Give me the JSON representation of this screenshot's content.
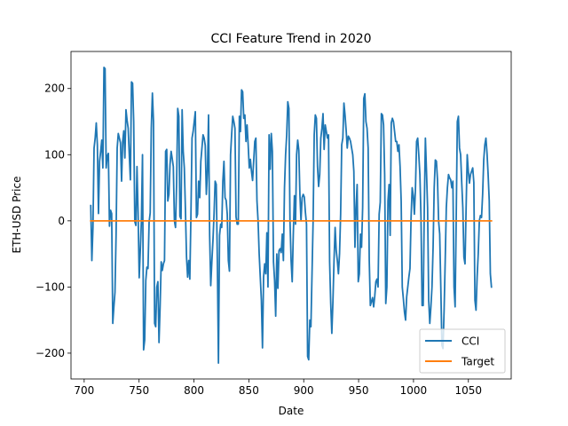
{
  "chart_data": {
    "type": "line",
    "title": "CCI Feature Trend in 2020",
    "xlabel": "Date",
    "ylabel": "ETH-USD Price",
    "xlim": [
      688,
      1089
    ],
    "ylim": [
      -239,
      256
    ],
    "xticks": [
      700,
      750,
      800,
      850,
      900,
      950,
      1000,
      1050
    ],
    "yticks": [
      -200,
      -100,
      0,
      100,
      200
    ],
    "grid": false,
    "legend": "lower right",
    "series": [
      {
        "name": "CCI",
        "color": "#1f77b4",
        "x_start": 706,
        "x_end": 1071,
        "values": [
          23,
          -60,
          -10,
          110,
          125,
          148,
          115,
          11,
          90,
          105,
          122,
          80,
          232,
          230,
          80,
          98,
          102,
          -8,
          16,
          11,
          -155,
          -130,
          -108,
          -22,
          110,
          132,
          125,
          118,
          60,
          120,
          136,
          95,
          168,
          152,
          140,
          100,
          62,
          210,
          208,
          150,
          -1,
          -7,
          82,
          12,
          -86,
          -45,
          0,
          100,
          -195,
          -180,
          -90,
          -70,
          -72,
          -2,
          12,
          140,
          193,
          150,
          -155,
          -160,
          -100,
          -92,
          -184,
          -130,
          -62,
          -75,
          -65,
          -60,
          105,
          108,
          30,
          40,
          85,
          105,
          94,
          82,
          0,
          -10,
          57,
          170,
          158,
          7,
          3,
          168,
          105,
          80,
          17,
          -55,
          -85,
          -60,
          -88,
          8,
          125,
          135,
          150,
          165,
          5,
          10,
          60,
          35,
          90,
          110,
          130,
          125,
          114,
          40,
          75,
          160,
          -22,
          -98,
          -62,
          -30,
          10,
          60,
          55,
          -60,
          -215,
          -22,
          -5,
          -10,
          60,
          90,
          35,
          31,
          10,
          -60,
          -76,
          100,
          131,
          158,
          150,
          140,
          6,
          -5,
          -5,
          158,
          135,
          198,
          195,
          155,
          160,
          120,
          145,
          115,
          80,
          93,
          75,
          61,
          90,
          120,
          125,
          30,
          0,
          -50,
          -85,
          -120,
          -192,
          -85,
          -65,
          -80,
          -18,
          -100,
          130,
          78,
          132,
          105,
          -62,
          -90,
          -144,
          -50,
          -102,
          -45,
          -42,
          -48,
          -20,
          -60,
          50,
          100,
          130,
          180,
          170,
          0,
          -60,
          -92,
          -20,
          38,
          -5,
          100,
          122,
          107,
          40,
          0,
          35,
          40,
          36,
          13,
          -5,
          -205,
          -210,
          -150,
          -160,
          -80,
          0,
          130,
          160,
          155,
          82,
          52,
          70,
          125,
          140,
          162,
          108,
          145,
          135,
          125,
          130,
          -62,
          -125,
          -170,
          -122,
          -60,
          -10,
          -45,
          -60,
          -80,
          -50,
          10,
          115,
          125,
          178,
          160,
          137,
          110,
          128,
          125,
          120,
          110,
          100,
          75,
          -40,
          20,
          55,
          -92,
          -80,
          -20,
          -40,
          20,
          185,
          192,
          150,
          140,
          110,
          -60,
          -128,
          -122,
          -116,
          -130,
          -114,
          -92,
          -88,
          -100,
          10,
          28,
          162,
          160,
          145,
          70,
          -125,
          -100,
          30,
          55,
          -22,
          148,
          155,
          150,
          135,
          120,
          120,
          105,
          115,
          82,
          30,
          -100,
          -118,
          -138,
          -150,
          -115,
          -100,
          -85,
          -72,
          5,
          50,
          38,
          10,
          50,
          120,
          125,
          100,
          70,
          5,
          -128,
          -128,
          20,
          125,
          75,
          20,
          -120,
          -155,
          -130,
          -100,
          -40,
          50,
          92,
          90,
          62,
          0,
          -20,
          -100,
          -188,
          -193,
          -135,
          -60,
          20,
          50,
          70,
          65,
          62,
          50,
          60,
          -100,
          -130,
          5,
          150,
          158,
          110,
          100,
          58,
          20,
          -55,
          -65,
          20,
          100,
          75,
          57,
          70,
          75,
          80,
          58,
          -120,
          -135,
          -85,
          -50,
          0,
          8,
          5,
          40,
          92,
          115,
          125,
          102,
          70,
          30,
          -80,
          -100
        ]
      },
      {
        "name": "Target",
        "color": "#ff7f0e",
        "x_start": 706,
        "x_end": 1071,
        "values": [
          0,
          0
        ]
      }
    ]
  }
}
